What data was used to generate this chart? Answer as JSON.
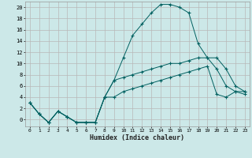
{
  "xlabel": "Humidex (Indice chaleur)",
  "bg_color": "#cce8e8",
  "grid_color": "#b8b8b8",
  "line_color": "#006060",
  "xlim": [
    -0.5,
    23.5
  ],
  "ylim": [
    -1.2,
    21
  ],
  "xticks": [
    0,
    1,
    2,
    3,
    4,
    5,
    6,
    7,
    8,
    9,
    10,
    11,
    12,
    13,
    14,
    15,
    16,
    17,
    18,
    19,
    20,
    21,
    22,
    23
  ],
  "yticks": [
    0,
    2,
    4,
    6,
    8,
    10,
    12,
    14,
    16,
    18,
    20
  ],
  "line1_x": [
    0,
    1,
    2,
    3,
    4,
    5,
    6,
    7,
    8,
    9,
    10,
    11,
    12,
    13,
    14,
    15,
    16,
    17,
    18,
    19,
    20,
    21,
    22,
    23
  ],
  "line1_y": [
    3,
    1,
    -0.5,
    1.5,
    0.5,
    -0.5,
    -0.5,
    -0.5,
    4,
    7,
    11,
    15,
    17,
    19,
    20.5,
    20.5,
    20,
    19,
    13.5,
    11,
    9,
    6,
    5,
    5
  ],
  "line2_x": [
    0,
    1,
    2,
    3,
    4,
    5,
    6,
    7,
    8,
    9,
    10,
    11,
    12,
    13,
    14,
    15,
    16,
    17,
    18,
    19,
    20,
    21,
    22,
    23
  ],
  "line2_y": [
    3,
    1,
    -0.5,
    1.5,
    0.5,
    -0.5,
    -0.5,
    -0.5,
    4,
    7,
    7.5,
    8,
    8.5,
    9,
    9.5,
    10,
    10,
    10.5,
    11,
    11,
    11,
    9,
    6,
    5
  ],
  "line3_x": [
    0,
    1,
    2,
    3,
    4,
    5,
    6,
    7,
    8,
    9,
    10,
    11,
    12,
    13,
    14,
    15,
    16,
    17,
    18,
    19,
    20,
    21,
    22,
    23
  ],
  "line3_y": [
    3,
    1,
    -0.5,
    1.5,
    0.5,
    -0.5,
    -0.5,
    -0.5,
    4,
    4,
    5,
    5.5,
    6,
    6.5,
    7,
    7.5,
    8,
    8.5,
    9,
    9.5,
    4.5,
    4,
    5,
    4.5
  ]
}
